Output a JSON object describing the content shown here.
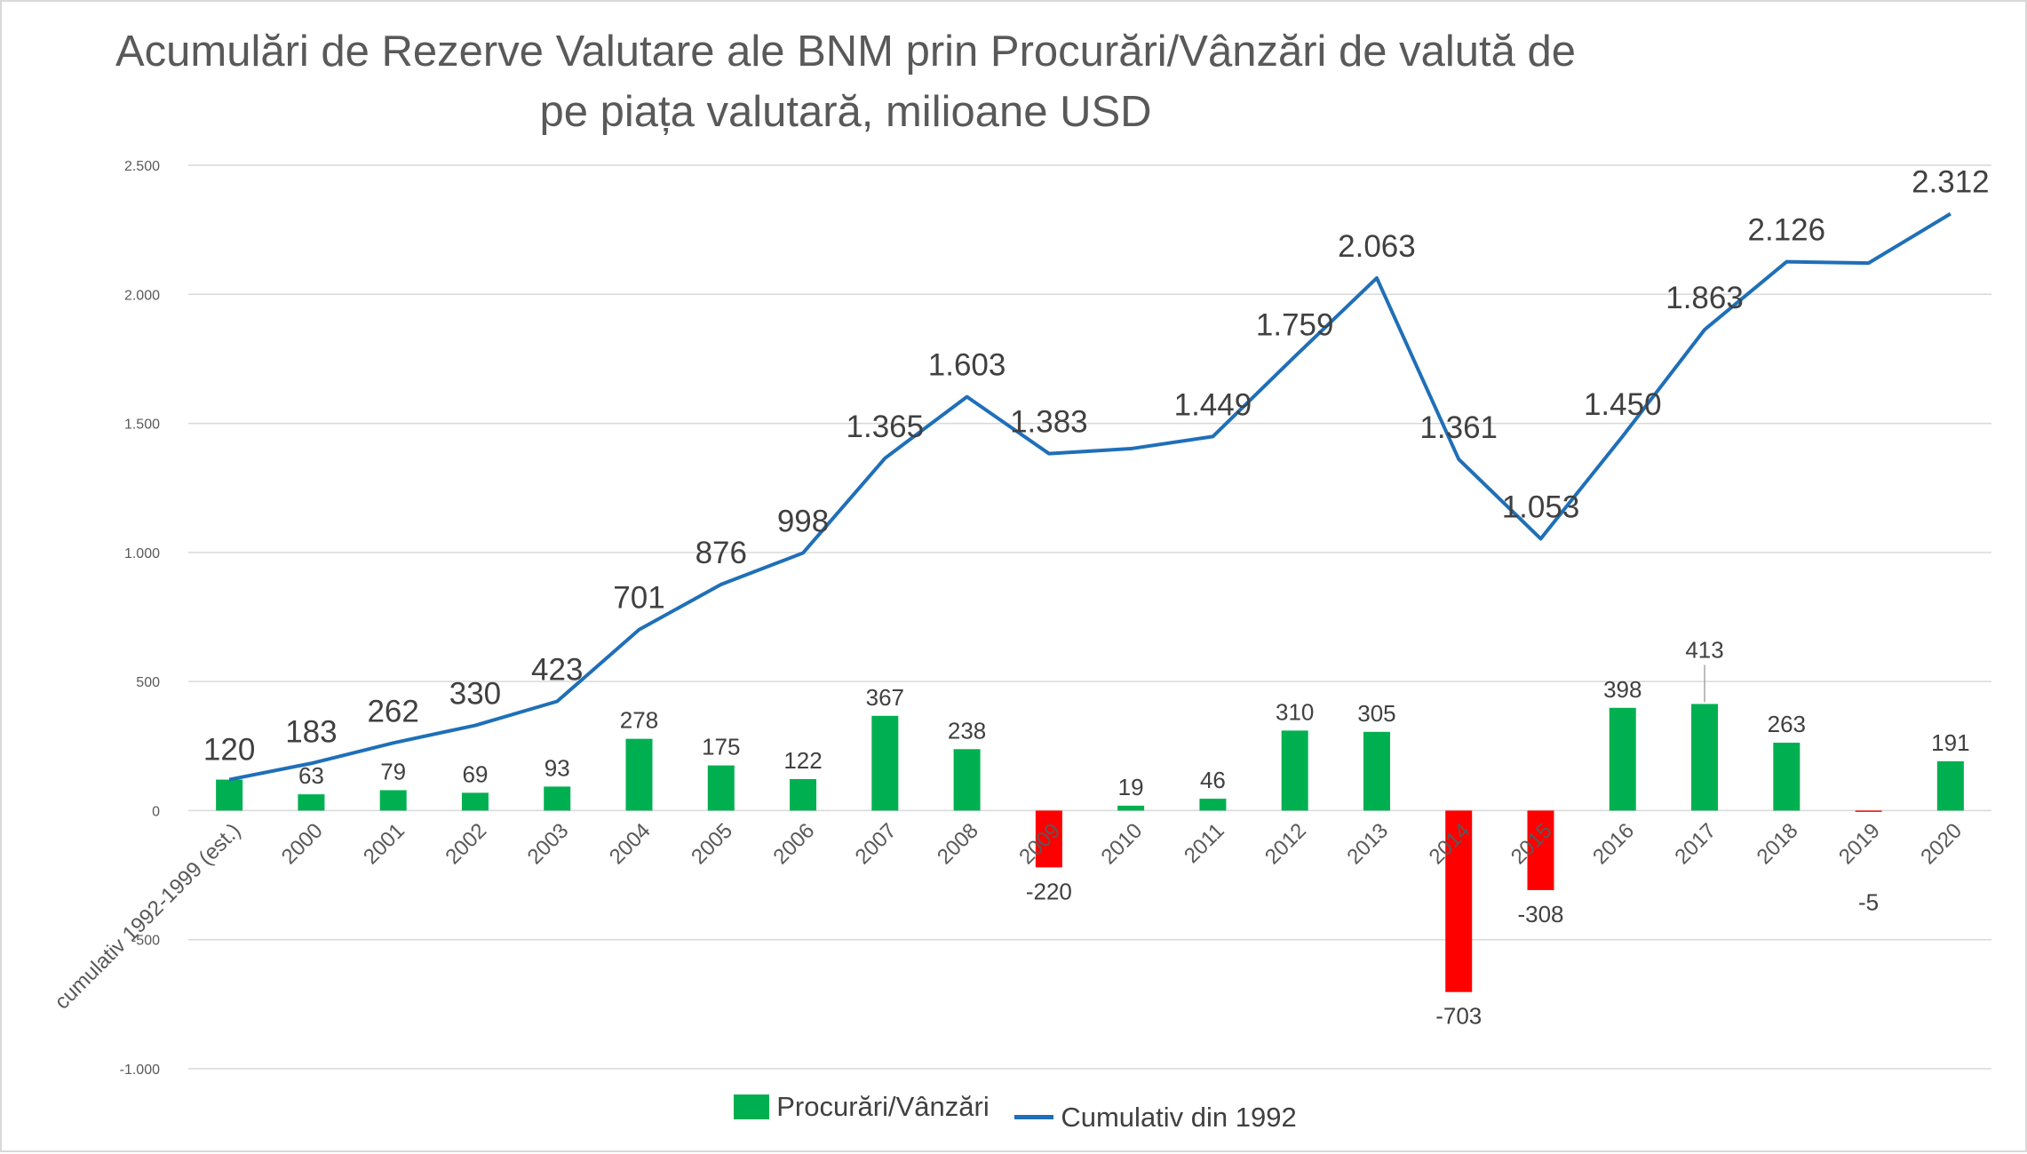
{
  "title_lines": [
    "Acumulări de Rezerve Valutare ale BNM prin Procurări/Vânzări de valută de",
    "pe piața valutară, milioane USD"
  ],
  "colors": {
    "positive_bar": "#00b050",
    "negative_bar": "#ff0000",
    "line": "#1f6fb8",
    "grid": "#d9d9d9",
    "axis_text": "#595959",
    "label_text": "#404040"
  },
  "legend": {
    "bar_label": "Procurări/Vânzări",
    "line_label": "Cumulativ din 1992"
  },
  "chart_data": {
    "type": "bar+line",
    "title": "Acumulări de Rezerve Valutare ale BNM prin Procurări/Vânzări de valută de pe piața valutară, milioane USD",
    "categories": [
      "cumulativ 1992-1999 (est.)",
      "2000",
      "2001",
      "2002",
      "2003",
      "2004",
      "2005",
      "2006",
      "2007",
      "2008",
      "2009",
      "2010",
      "2011",
      "2012",
      "2013",
      "2014",
      "2015",
      "2016",
      "2017",
      "2018",
      "2019",
      "2020"
    ],
    "series": [
      {
        "name": "Procurări/Vânzări",
        "kind": "bar",
        "values": [
          120,
          63,
          79,
          69,
          93,
          278,
          175,
          122,
          367,
          238,
          -220,
          19,
          46,
          310,
          305,
          -703,
          -308,
          398,
          413,
          263,
          -5,
          191
        ],
        "labels": [
          "",
          "63",
          "79",
          "69",
          "93",
          "278",
          "175",
          "122",
          "367",
          "238",
          "-220",
          "19",
          "46",
          "310",
          "305",
          "-703",
          "-308",
          "398",
          "413",
          "263",
          "-5",
          "191"
        ]
      },
      {
        "name": "Cumulativ din 1992",
        "kind": "line",
        "values": [
          120,
          183,
          262,
          330,
          423,
          701,
          876,
          998,
          1365,
          1603,
          1383,
          1402,
          1449,
          1759,
          2063,
          1361,
          1053,
          1450,
          1863,
          2126,
          2121,
          2312
        ],
        "labels": [
          "120",
          "183",
          "262",
          "330",
          "423",
          "701",
          "876",
          "998",
          "1.365",
          "1.603",
          "1.383",
          "",
          "1.449",
          "1.759",
          "2.063",
          "1.361",
          "1.053",
          "1.450",
          "1.863",
          "2.126",
          "",
          "2.312"
        ]
      }
    ],
    "y_ticks": [
      -1000,
      -500,
      0,
      500,
      1000,
      1500,
      2000,
      2500
    ],
    "y_tick_labels": [
      "-1.000",
      "-500",
      "0",
      "500",
      "1.000",
      "1.500",
      "2.000",
      "2.500"
    ],
    "ylim": [
      -1000,
      2500
    ],
    "grid": true,
    "legend_position": "bottom"
  }
}
